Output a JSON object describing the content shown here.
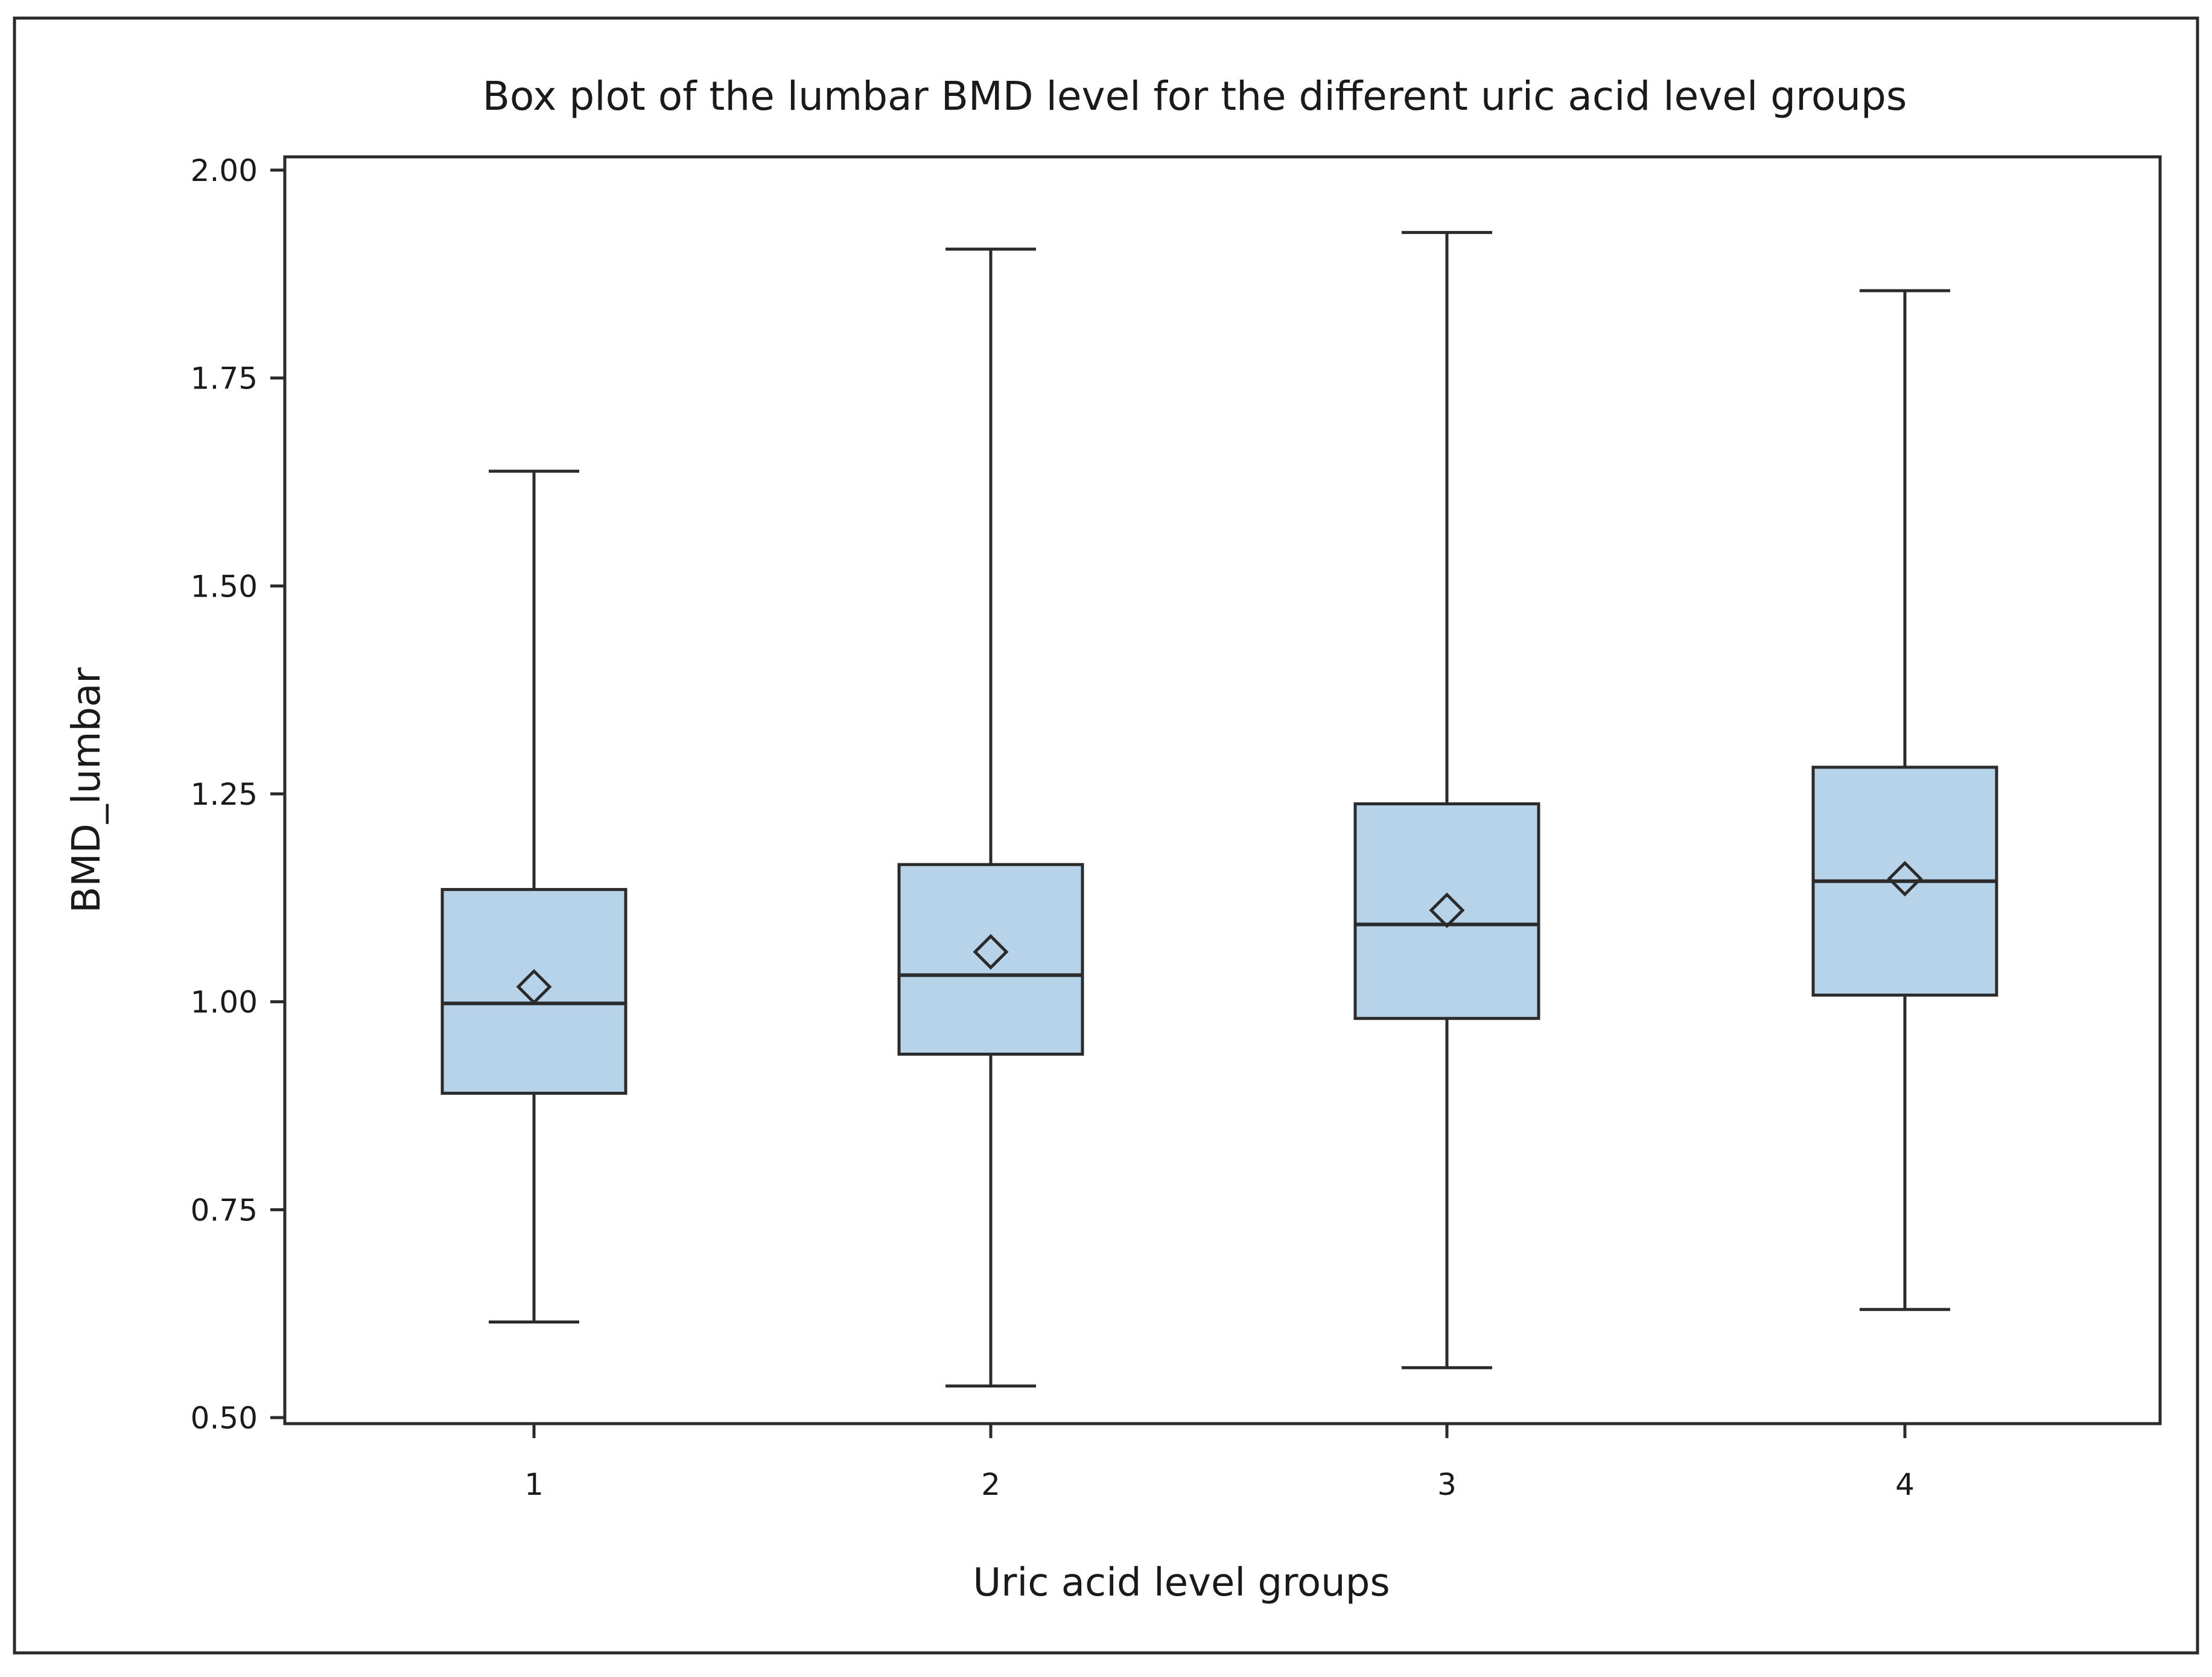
{
  "chart_data": {
    "type": "box",
    "title": "Box plot of the lumbar BMD level for the different uric acid level groups",
    "xlabel": "Uric acid level groups",
    "ylabel": "BMD_lumbar",
    "categories": [
      "1",
      "2",
      "3",
      "4"
    ],
    "ylim": [
      0.5,
      2.0
    ],
    "yticks": [
      "0.50",
      "0.75",
      "1.00",
      "1.25",
      "1.50",
      "1.75",
      "2.00"
    ],
    "yticks_values": [
      0.5,
      0.75,
      1.0,
      1.25,
      1.5,
      1.75,
      2.0
    ],
    "grid": false,
    "boxes": [
      {
        "group": "1",
        "min": 0.615,
        "q1": 0.89,
        "median": 0.998,
        "q3": 1.135,
        "max": 1.638,
        "mean": 1.018
      },
      {
        "group": "2",
        "min": 0.538,
        "q1": 0.937,
        "median": 1.032,
        "q3": 1.165,
        "max": 1.905,
        "mean": 1.06
      },
      {
        "group": "3",
        "min": 0.56,
        "q1": 0.98,
        "median": 1.093,
        "q3": 1.238,
        "max": 1.925,
        "mean": 1.11
      },
      {
        "group": "4",
        "min": 0.63,
        "q1": 1.008,
        "median": 1.145,
        "q3": 1.282,
        "max": 1.855,
        "mean": 1.148
      }
    ],
    "colors": {
      "box_fill": "#b7d3ea",
      "box_stroke": "#2b2b2b",
      "frame": "#2b2b2b",
      "text": "#1a1a1a"
    }
  }
}
